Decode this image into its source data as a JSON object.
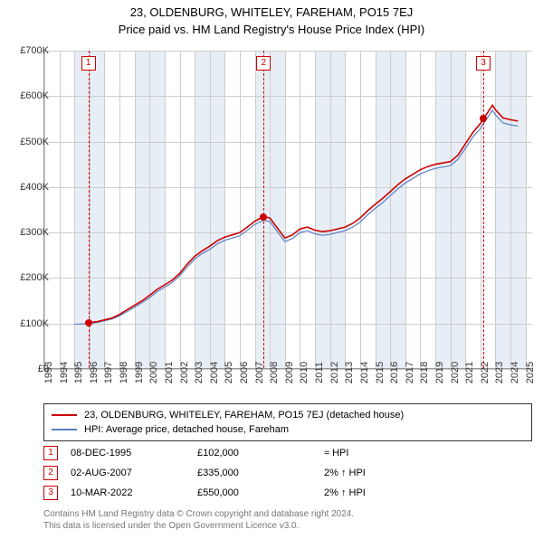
{
  "title_line1": "23, OLDENBURG, WHITELEY, FAREHAM, PO15 7EJ",
  "title_line2": "Price paid vs. HM Land Registry's House Price Index (HPI)",
  "chart": {
    "xlim": [
      1993,
      2025.5
    ],
    "ylim": [
      0,
      700000
    ],
    "ylabels": [
      "£0",
      "£100K",
      "£200K",
      "£300K",
      "£400K",
      "£500K",
      "£600K",
      "£700K"
    ],
    "yvalues": [
      0,
      100000,
      200000,
      300000,
      400000,
      500000,
      600000,
      700000
    ],
    "xticks": [
      1993,
      1994,
      1995,
      1996,
      1997,
      1998,
      1999,
      2000,
      2001,
      2002,
      2003,
      2004,
      2005,
      2006,
      2007,
      2008,
      2009,
      2010,
      2011,
      2012,
      2013,
      2014,
      2015,
      2016,
      2017,
      2018,
      2019,
      2020,
      2021,
      2022,
      2023,
      2024,
      2025
    ],
    "band_color": "#e8eef6",
    "grid_color": "#cccccc",
    "colors": {
      "red": "#cc0000",
      "blue": "#5a7fc2"
    },
    "line_width_red": 1.6,
    "line_width_blue": 1.2,
    "red_series": [
      {
        "x": 1995.93,
        "y": 102000
      },
      {
        "x": 1996.5,
        "y": 104000
      },
      {
        "x": 1997,
        "y": 108000
      },
      {
        "x": 1997.5,
        "y": 112000
      },
      {
        "x": 1998,
        "y": 120000
      },
      {
        "x": 1998.5,
        "y": 130000
      },
      {
        "x": 1999,
        "y": 140000
      },
      {
        "x": 1999.5,
        "y": 150000
      },
      {
        "x": 2000,
        "y": 162000
      },
      {
        "x": 2000.5,
        "y": 175000
      },
      {
        "x": 2001,
        "y": 185000
      },
      {
        "x": 2001.5,
        "y": 195000
      },
      {
        "x": 2002,
        "y": 210000
      },
      {
        "x": 2002.5,
        "y": 230000
      },
      {
        "x": 2003,
        "y": 248000
      },
      {
        "x": 2003.5,
        "y": 260000
      },
      {
        "x": 2004,
        "y": 270000
      },
      {
        "x": 2004.5,
        "y": 282000
      },
      {
        "x": 2005,
        "y": 290000
      },
      {
        "x": 2005.5,
        "y": 295000
      },
      {
        "x": 2006,
        "y": 300000
      },
      {
        "x": 2006.5,
        "y": 312000
      },
      {
        "x": 2007,
        "y": 325000
      },
      {
        "x": 2007.58,
        "y": 335000
      },
      {
        "x": 2008,
        "y": 332000
      },
      {
        "x": 2008.5,
        "y": 310000
      },
      {
        "x": 2009,
        "y": 288000
      },
      {
        "x": 2009.5,
        "y": 295000
      },
      {
        "x": 2010,
        "y": 308000
      },
      {
        "x": 2010.5,
        "y": 312000
      },
      {
        "x": 2011,
        "y": 305000
      },
      {
        "x": 2011.5,
        "y": 302000
      },
      {
        "x": 2012,
        "y": 304000
      },
      {
        "x": 2012.5,
        "y": 308000
      },
      {
        "x": 2013,
        "y": 312000
      },
      {
        "x": 2013.5,
        "y": 320000
      },
      {
        "x": 2014,
        "y": 332000
      },
      {
        "x": 2014.5,
        "y": 348000
      },
      {
        "x": 2015,
        "y": 362000
      },
      {
        "x": 2015.5,
        "y": 375000
      },
      {
        "x": 2016,
        "y": 390000
      },
      {
        "x": 2016.5,
        "y": 405000
      },
      {
        "x": 2017,
        "y": 418000
      },
      {
        "x": 2017.5,
        "y": 428000
      },
      {
        "x": 2018,
        "y": 438000
      },
      {
        "x": 2018.5,
        "y": 445000
      },
      {
        "x": 2019,
        "y": 450000
      },
      {
        "x": 2019.5,
        "y": 453000
      },
      {
        "x": 2020,
        "y": 456000
      },
      {
        "x": 2020.5,
        "y": 470000
      },
      {
        "x": 2021,
        "y": 495000
      },
      {
        "x": 2021.5,
        "y": 520000
      },
      {
        "x": 2022,
        "y": 540000
      },
      {
        "x": 2022.19,
        "y": 550000
      },
      {
        "x": 2022.5,
        "y": 565000
      },
      {
        "x": 2022.8,
        "y": 580000
      },
      {
        "x": 2023,
        "y": 570000
      },
      {
        "x": 2023.5,
        "y": 552000
      },
      {
        "x": 2024,
        "y": 548000
      },
      {
        "x": 2024.5,
        "y": 545000
      }
    ],
    "blue_series": [
      {
        "x": 1995.0,
        "y": 98000
      },
      {
        "x": 1995.93,
        "y": 100000
      },
      {
        "x": 1996.5,
        "y": 102000
      },
      {
        "x": 1997,
        "y": 106000
      },
      {
        "x": 1997.5,
        "y": 110000
      },
      {
        "x": 1998,
        "y": 117000
      },
      {
        "x": 1998.5,
        "y": 126000
      },
      {
        "x": 1999,
        "y": 136000
      },
      {
        "x": 1999.5,
        "y": 146000
      },
      {
        "x": 2000,
        "y": 157000
      },
      {
        "x": 2000.5,
        "y": 170000
      },
      {
        "x": 2001,
        "y": 180000
      },
      {
        "x": 2001.5,
        "y": 190000
      },
      {
        "x": 2002,
        "y": 205000
      },
      {
        "x": 2002.5,
        "y": 224000
      },
      {
        "x": 2003,
        "y": 242000
      },
      {
        "x": 2003.5,
        "y": 254000
      },
      {
        "x": 2004,
        "y": 263000
      },
      {
        "x": 2004.5,
        "y": 275000
      },
      {
        "x": 2005,
        "y": 283000
      },
      {
        "x": 2005.5,
        "y": 288000
      },
      {
        "x": 2006,
        "y": 293000
      },
      {
        "x": 2006.5,
        "y": 305000
      },
      {
        "x": 2007,
        "y": 318000
      },
      {
        "x": 2007.58,
        "y": 327000
      },
      {
        "x": 2008,
        "y": 324000
      },
      {
        "x": 2008.5,
        "y": 302000
      },
      {
        "x": 2009,
        "y": 280000
      },
      {
        "x": 2009.5,
        "y": 287000
      },
      {
        "x": 2010,
        "y": 300000
      },
      {
        "x": 2010.5,
        "y": 304000
      },
      {
        "x": 2011,
        "y": 297000
      },
      {
        "x": 2011.5,
        "y": 294000
      },
      {
        "x": 2012,
        "y": 296000
      },
      {
        "x": 2012.5,
        "y": 300000
      },
      {
        "x": 2013,
        "y": 304000
      },
      {
        "x": 2013.5,
        "y": 312000
      },
      {
        "x": 2014,
        "y": 323000
      },
      {
        "x": 2014.5,
        "y": 339000
      },
      {
        "x": 2015,
        "y": 353000
      },
      {
        "x": 2015.5,
        "y": 366000
      },
      {
        "x": 2016,
        "y": 381000
      },
      {
        "x": 2016.5,
        "y": 396000
      },
      {
        "x": 2017,
        "y": 409000
      },
      {
        "x": 2017.5,
        "y": 419000
      },
      {
        "x": 2018,
        "y": 429000
      },
      {
        "x": 2018.5,
        "y": 436000
      },
      {
        "x": 2019,
        "y": 441000
      },
      {
        "x": 2019.5,
        "y": 444000
      },
      {
        "x": 2020,
        "y": 447000
      },
      {
        "x": 2020.5,
        "y": 461000
      },
      {
        "x": 2021,
        "y": 485000
      },
      {
        "x": 2021.5,
        "y": 510000
      },
      {
        "x": 2022,
        "y": 529000
      },
      {
        "x": 2022.19,
        "y": 539000
      },
      {
        "x": 2022.5,
        "y": 554000
      },
      {
        "x": 2022.8,
        "y": 569000
      },
      {
        "x": 2023,
        "y": 559000
      },
      {
        "x": 2023.5,
        "y": 541000
      },
      {
        "x": 2024,
        "y": 537000
      },
      {
        "x": 2024.5,
        "y": 534000
      }
    ],
    "markers": [
      {
        "n": "1",
        "x": 1995.93,
        "y": 102000
      },
      {
        "n": "2",
        "x": 2007.58,
        "y": 335000
      },
      {
        "n": "3",
        "x": 2022.19,
        "y": 550000
      }
    ]
  },
  "legend": {
    "items": [
      {
        "color": "#cc0000",
        "label": "23, OLDENBURG, WHITELEY, FAREHAM, PO15 7EJ (detached house)"
      },
      {
        "color": "#5a7fc2",
        "label": "HPI: Average price, detached house, Fareham"
      }
    ]
  },
  "transactions": [
    {
      "n": "1",
      "date": "08-DEC-1995",
      "price": "£102,000",
      "comp": "≈ HPI"
    },
    {
      "n": "2",
      "date": "02-AUG-2007",
      "price": "£335,000",
      "comp": "2% ↑ HPI"
    },
    {
      "n": "3",
      "date": "10-MAR-2022",
      "price": "£550,000",
      "comp": "2% ↑ HPI"
    }
  ],
  "footer_line1": "Contains HM Land Registry data © Crown copyright and database right 2024.",
  "footer_line2": "This data is licensed under the Open Government Licence v3.0."
}
